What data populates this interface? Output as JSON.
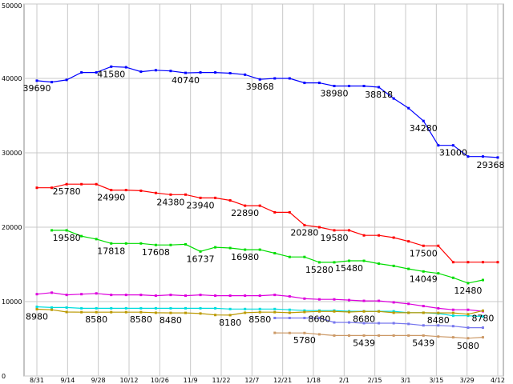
{
  "chart_data": {
    "type": "line",
    "title": "",
    "xlabel": "",
    "ylabel": "",
    "ylim": [
      0,
      50000
    ],
    "grid": true,
    "x_tick_labels": [
      "8/31",
      "9/14",
      "9/28",
      "10/12",
      "10/26",
      "11/9",
      "11/22",
      "12/7",
      "12/21",
      "1/18",
      "2/1",
      "2/15",
      "3/1",
      "3/15",
      "3/29",
      "4/12"
    ],
    "y_tick_labels": [
      "0",
      "10000",
      "20000",
      "30000",
      "40000",
      "50000"
    ],
    "y_ticks": [
      0,
      10000,
      20000,
      30000,
      40000,
      50000
    ],
    "series": [
      {
        "color": "#0000ff",
        "values": [
          39690,
          39500,
          39800,
          40800,
          40800,
          41580,
          41500,
          40900,
          41100,
          41000,
          40740,
          40800,
          40800,
          40700,
          40500,
          39868,
          40000,
          40000,
          39400,
          39400,
          38980,
          38980,
          38980,
          38818,
          37300,
          36000,
          34280,
          31000,
          31000,
          29500,
          29500,
          29368
        ],
        "labels": [
          {
            "i": 0,
            "text": "39690"
          },
          {
            "i": 5,
            "text": "41580"
          },
          {
            "i": 10,
            "text": "40740"
          },
          {
            "i": 15,
            "text": "39868"
          },
          {
            "i": 20,
            "text": "38980"
          },
          {
            "i": 23,
            "text": "38818"
          },
          {
            "i": 26,
            "text": "34280"
          },
          {
            "i": 28,
            "text": "31000"
          },
          {
            "i": 31,
            "text": "29368"
          }
        ]
      },
      {
        "color": "#ff0000",
        "values": [
          25300,
          25300,
          25780,
          25780,
          25780,
          24990,
          24990,
          24900,
          24600,
          24380,
          24380,
          23940,
          23940,
          23600,
          22890,
          22890,
          22000,
          22000,
          20280,
          20000,
          19580,
          19580,
          18900,
          18900,
          18600,
          18100,
          17500,
          17500,
          15300,
          15300,
          15300,
          15300
        ],
        "labels": [
          {
            "i": 2,
            "text": "25780"
          },
          {
            "i": 5,
            "text": "24990"
          },
          {
            "i": 9,
            "text": "24380"
          },
          {
            "i": 11,
            "text": "23940"
          },
          {
            "i": 14,
            "text": "22890"
          },
          {
            "i": 18,
            "text": "20280"
          },
          {
            "i": 20,
            "text": "19580"
          },
          {
            "i": 26,
            "text": "17500"
          }
        ]
      },
      {
        "color": "#00dd00",
        "values": [
          null,
          19580,
          19580,
          18800,
          18400,
          17818,
          17818,
          17818,
          17608,
          17608,
          17700,
          16737,
          17300,
          17200,
          16980,
          16980,
          16500,
          16000,
          16000,
          15280,
          15280,
          15480,
          15480,
          15100,
          14800,
          14400,
          14049,
          13800,
          13200,
          12480,
          12900,
          null
        ],
        "labels": [
          {
            "i": 2,
            "text": "19580"
          },
          {
            "i": 5,
            "text": "17818"
          },
          {
            "i": 8,
            "text": "17608"
          },
          {
            "i": 11,
            "text": "16737"
          },
          {
            "i": 14,
            "text": "16980"
          },
          {
            "i": 19,
            "text": "15280"
          },
          {
            "i": 21,
            "text": "15480"
          },
          {
            "i": 26,
            "text": "14049"
          },
          {
            "i": 29,
            "text": "12480"
          }
        ]
      },
      {
        "color": "#dd00dd",
        "values": [
          11000,
          11200,
          10900,
          11000,
          11100,
          10900,
          10900,
          10900,
          10800,
          10900,
          10800,
          10900,
          10800,
          10800,
          10800,
          10800,
          10900,
          10700,
          10400,
          10300,
          10300,
          10200,
          10100,
          10100,
          9900,
          9700,
          9400,
          9100,
          8900,
          8900,
          8700,
          null
        ],
        "labels": []
      },
      {
        "color": "#00dddd",
        "values": [
          9300,
          9200,
          9200,
          9100,
          9100,
          9100,
          9100,
          9100,
          9100,
          9100,
          9100,
          9100,
          9100,
          9000,
          9000,
          9000,
          9000,
          8900,
          8800,
          8800,
          8800,
          8700,
          8700,
          8700,
          8700,
          8500,
          8500,
          8400,
          8100,
          8100,
          8000,
          null
        ],
        "labels": []
      },
      {
        "color": "#bb9900",
        "values": [
          8980,
          8900,
          8600,
          8580,
          8580,
          8580,
          8580,
          8580,
          8500,
          8480,
          8480,
          8400,
          8200,
          8180,
          8500,
          8580,
          8580,
          8500,
          8600,
          8680,
          8680,
          8600,
          8680,
          8680,
          8500,
          8500,
          8500,
          8480,
          8480,
          8300,
          8780,
          null
        ],
        "labels": [
          {
            "i": 0,
            "text": "8980"
          },
          {
            "i": 4,
            "text": "8580"
          },
          {
            "i": 7,
            "text": "8580"
          },
          {
            "i": 9,
            "text": "8480"
          },
          {
            "i": 13,
            "text": "8180"
          },
          {
            "i": 15,
            "text": "8580"
          },
          {
            "i": 19,
            "text": "8680"
          },
          {
            "i": 22,
            "text": "8680"
          },
          {
            "i": 27,
            "text": "8480"
          },
          {
            "i": 30,
            "text": "8780"
          }
        ]
      },
      {
        "color": "#7777ee",
        "values": [
          null,
          null,
          null,
          null,
          null,
          null,
          null,
          null,
          null,
          null,
          null,
          null,
          null,
          null,
          null,
          null,
          7800,
          7800,
          7800,
          7800,
          7200,
          7200,
          7100,
          7100,
          7100,
          7000,
          6800,
          6800,
          6700,
          6500,
          6500,
          null
        ],
        "labels": []
      },
      {
        "color": "#cc9966",
        "values": [
          null,
          null,
          null,
          null,
          null,
          null,
          null,
          null,
          null,
          null,
          null,
          null,
          null,
          null,
          null,
          null,
          5800,
          5780,
          5780,
          5600,
          5439,
          5439,
          5439,
          5439,
          5439,
          5439,
          5439,
          5300,
          5200,
          5080,
          5200,
          null
        ],
        "labels": [
          {
            "i": 18,
            "text": "5780"
          },
          {
            "i": 22,
            "text": "5439"
          },
          {
            "i": 26,
            "text": "5439"
          },
          {
            "i": 29,
            "text": "5080"
          }
        ]
      }
    ]
  }
}
